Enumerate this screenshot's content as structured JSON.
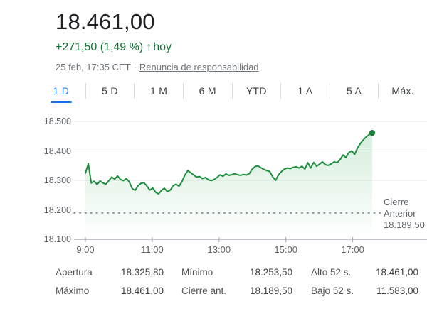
{
  "header": {
    "price": "18.461,00",
    "change": "+271,50 (1,49 %)",
    "arrow_icon": "↑",
    "change_period": "hoy",
    "timestamp": "25 feb, 17:35 CET",
    "separator": "·",
    "disclaimer_link": "Renuncia de responsabilidad"
  },
  "tabs": [
    {
      "label": "1 D",
      "active": true
    },
    {
      "label": "5 D",
      "active": false
    },
    {
      "label": "1 M",
      "active": false
    },
    {
      "label": "6 M",
      "active": false
    },
    {
      "label": "YTD",
      "active": false
    },
    {
      "label": "1 A",
      "active": false
    },
    {
      "label": "5 A",
      "active": false
    },
    {
      "label": "Máx.",
      "active": false
    }
  ],
  "chart_data": {
    "type": "area",
    "title": "Intraday index price, 1 D",
    "x_start_minutes": 540,
    "x_end_minutes": 1055,
    "x_ticks": [
      {
        "label": "9:00",
        "minutes": 540
      },
      {
        "label": "11:00",
        "minutes": 660
      },
      {
        "label": "13:00",
        "minutes": 780
      },
      {
        "label": "15:00",
        "minutes": 900
      },
      {
        "label": "17:00",
        "minutes": 1020
      }
    ],
    "y_ticks": [
      {
        "label": "18.500",
        "value": 18500,
        "grid": true,
        "axis": false
      },
      {
        "label": "18.400",
        "value": 18400,
        "grid": true,
        "axis": false
      },
      {
        "label": "18.300",
        "value": 18300,
        "grid": true,
        "axis": false
      },
      {
        "label": "18.200",
        "value": 18200,
        "grid": false,
        "axis": false
      },
      {
        "label": "18.100",
        "value": 18100,
        "grid": false,
        "axis": true
      }
    ],
    "ylim": [
      18100,
      18520
    ],
    "prev_close": {
      "label_lines": [
        "Cierre",
        "Anterior"
      ],
      "value_label": "18.189,50",
      "value": 18189.5
    },
    "series": [
      {
        "name": "price",
        "values": [
          18324,
          18357,
          18291,
          18297,
          18286,
          18298,
          18291,
          18287,
          18299,
          18311,
          18304,
          18315,
          18303,
          18299,
          18306,
          18295,
          18272,
          18266,
          18282,
          18290,
          18292,
          18281,
          18267,
          18274,
          18260,
          18254,
          18266,
          18273,
          18262,
          18267,
          18282,
          18287,
          18280,
          18296,
          18318,
          18333,
          18326,
          18318,
          18311,
          18313,
          18306,
          18310,
          18302,
          18299,
          18303,
          18310,
          18319,
          18314,
          18322,
          18317,
          18319,
          18323,
          18319,
          18317,
          18320,
          18318,
          18323,
          18338,
          18347,
          18349,
          18343,
          18337,
          18333,
          18330,
          18312,
          18300,
          18319,
          18330,
          18338,
          18342,
          18340,
          18344,
          18346,
          18342,
          18348,
          18338,
          18360,
          18342,
          18361,
          18348,
          18355,
          18363,
          18353,
          18351,
          18356,
          18363,
          18360,
          18370,
          18386,
          18377,
          18394,
          18400,
          18388,
          18410,
          18426,
          18438,
          18448,
          18456,
          18461
        ]
      }
    ],
    "colors": {
      "line": "#1e8e3e",
      "dot": "#188038",
      "fill_top": "rgba(52,168,83,0.20)",
      "fill_bottom": "rgba(52,168,83,0)",
      "grid": "#e8eaed",
      "axis": "#c0c4c9",
      "tick": "#9aa0a6",
      "dotted": "#80868b"
    },
    "legend": "none",
    "grid": true
  },
  "stats": {
    "columns": [
      [
        {
          "label": "Apertura",
          "value": "18.325,80"
        },
        {
          "label": "Máximo",
          "value": "18.461,00"
        }
      ],
      [
        {
          "label": "Mínimo",
          "value": "18.253,50"
        },
        {
          "label": "Cierre ant.",
          "value": "18.189,50"
        }
      ],
      [
        {
          "label": "Alto 52 s.",
          "value": "18.461,00"
        },
        {
          "label": "Bajo 52 s.",
          "value": "11.583,00"
        }
      ]
    ]
  },
  "colors": {
    "accent_blue": "#1a73e8",
    "positive_green": "#137333",
    "text_primary": "#202124",
    "text_secondary": "#70757a"
  }
}
